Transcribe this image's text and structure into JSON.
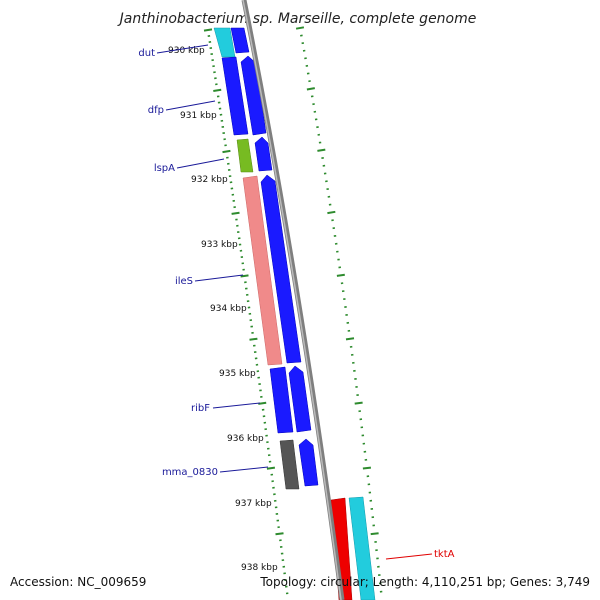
{
  "title": "Janthinobacterium sp. Marseille, complete genome",
  "accession": "Accession: NC_009659",
  "summary": "Topology: circular; Length: 4,110,251 bp; Genes: 3,749",
  "colors": {
    "ruler": "#2e8b2e",
    "backbone": "#8a8a8a",
    "forward_cds": "#1a1aff",
    "label_default": "#1a1a99",
    "label_highlight": "#e00000",
    "cyan_gene": "#22ccdd",
    "green_gene": "#77bb22",
    "salmon_gene": "#f08a8a",
    "gray_gene": "#555555",
    "red_gene": "#ee0000"
  },
  "ruler_ticks": [
    {
      "label": "930 kbp"
    },
    {
      "label": "931 kbp"
    },
    {
      "label": "932 kbp"
    },
    {
      "label": "933 kbp"
    },
    {
      "label": "934 kbp"
    },
    {
      "label": "935 kbp"
    },
    {
      "label": "936 kbp"
    },
    {
      "label": "937 kbp"
    },
    {
      "label": "938 kbp"
    }
  ],
  "gene_labels": [
    {
      "name": "dut"
    },
    {
      "name": "dfp"
    },
    {
      "name": "lspA"
    },
    {
      "name": "ileS"
    },
    {
      "name": "ribF"
    },
    {
      "name": "mma_0830"
    },
    {
      "name": "tktA"
    }
  ]
}
